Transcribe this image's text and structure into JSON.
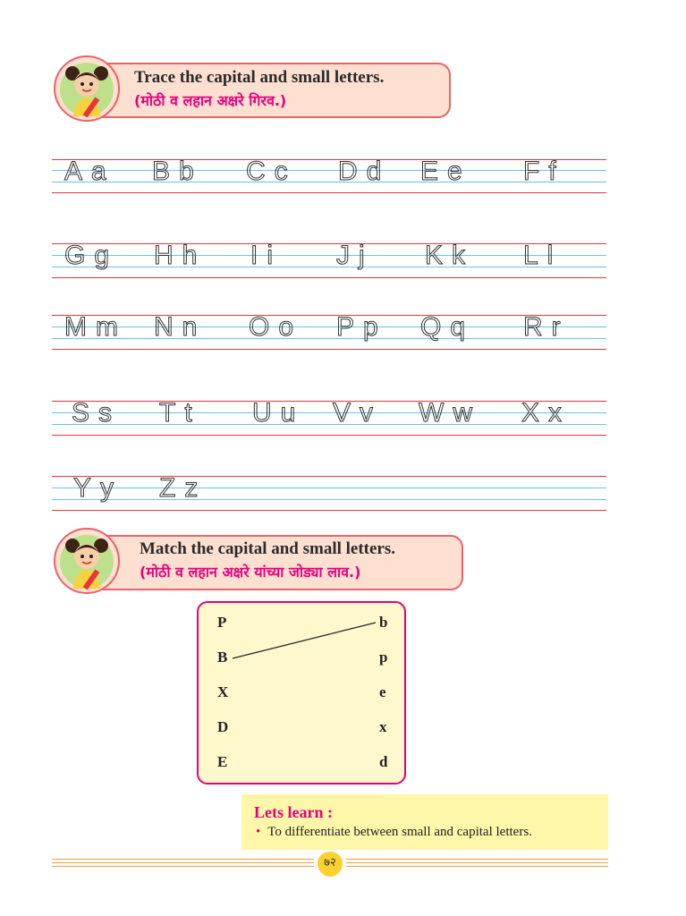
{
  "section_trace": {
    "title": "Trace the capital and small letters.",
    "subtitle": "(मोठी व लहान अक्षरे गिरव.)"
  },
  "trace_rows": [
    [
      "Aa",
      "Bb",
      "Cc",
      "Dd",
      "Ee",
      "Ff"
    ],
    [
      "Gg",
      "Hh",
      "Ii",
      "Jj",
      "Kk",
      "Ll"
    ],
    [
      "Mm",
      "Nn",
      "Oo",
      "Pp",
      "Qq",
      "Rr"
    ],
    [
      "Ss",
      "Tt",
      "Uu",
      "Vv",
      "Ww",
      "Xx"
    ],
    [
      "Yy",
      "Zz"
    ]
  ],
  "section_match": {
    "title": "Match the capital and small letters.",
    "subtitle": "(मोठी व लहान अक्षरे यांच्या जोड्या लाव.)",
    "capitals": [
      "P",
      "B",
      "X",
      "D",
      "E"
    ],
    "smalls": [
      "b",
      "p",
      "e",
      "x",
      "d"
    ],
    "example_match": {
      "from": "B",
      "to": "b"
    }
  },
  "lets_learn": {
    "title": "Lets learn :",
    "items": [
      "To differentiate between small and capital letters."
    ]
  },
  "page_number": "७२",
  "colors": {
    "banner_fill": "#fde0d0",
    "banner_border": "#e9636a",
    "accent_pink": "#e6007e",
    "ruled_red": "#e8343e",
    "ruled_blue": "#67c4e6",
    "match_box_fill": "#fff8cc",
    "learn_box_fill": "#fef6a8",
    "footer_orange": "#f1a036"
  }
}
